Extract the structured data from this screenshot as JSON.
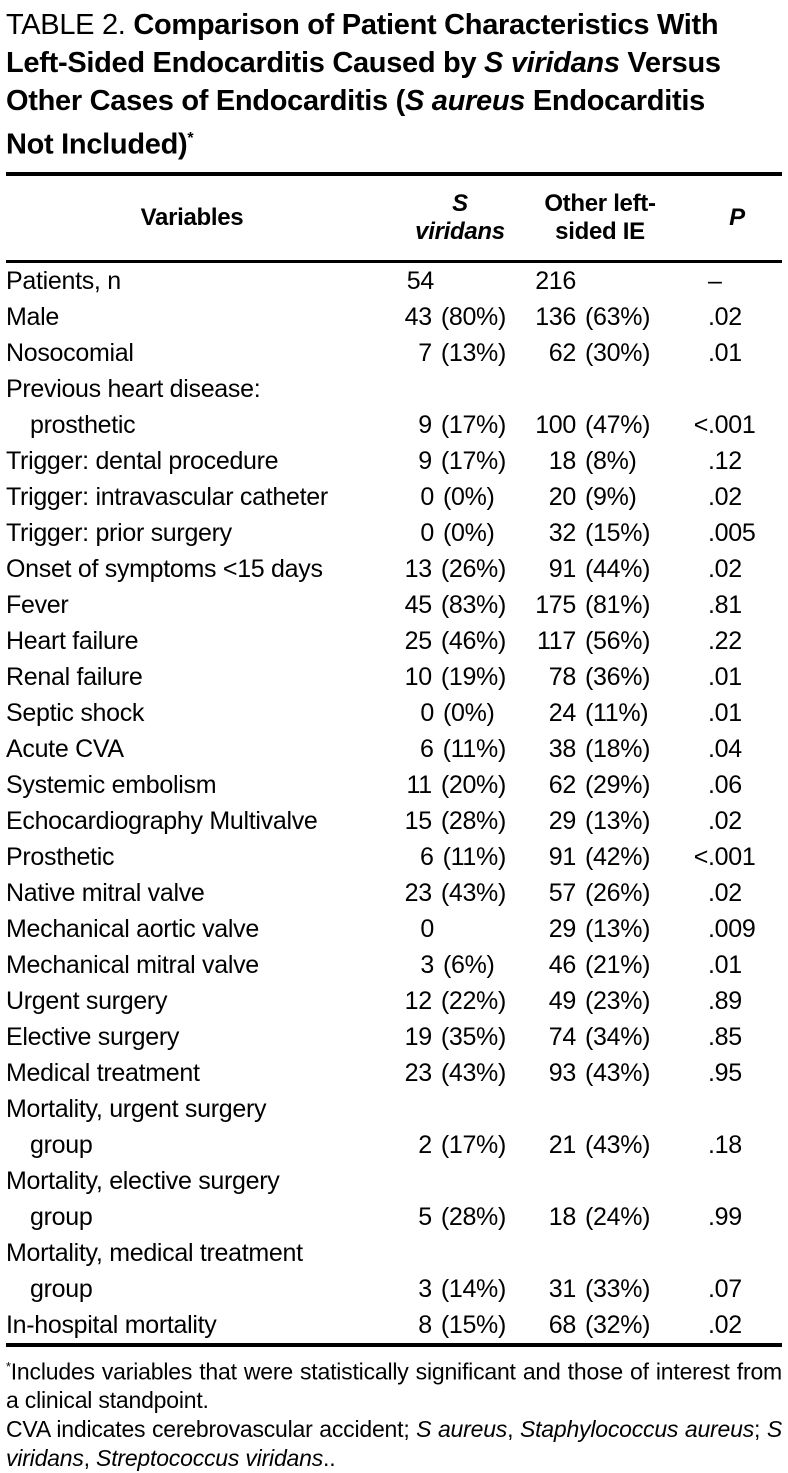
{
  "colors": {
    "text": "#000000",
    "background": "#ffffff"
  },
  "title": {
    "segments": [
      {
        "text": "TABLE 2. ",
        "style": "plain"
      },
      {
        "text": "Comparison of Patient Characteristics With",
        "style": "bold"
      },
      {
        "style": "break"
      },
      {
        "text": "Left-Sided Endocarditis Caused by ",
        "style": "bold"
      },
      {
        "text": "S viridans",
        "style": "bold-italic"
      },
      {
        "text": " Versus",
        "style": "bold"
      },
      {
        "style": "break"
      },
      {
        "text": "Other Cases of Endocarditis (",
        "style": "bold"
      },
      {
        "text": "S aureus",
        "style": "bold-italic"
      },
      {
        "text": " Endocarditis",
        "style": "bold"
      },
      {
        "style": "break"
      },
      {
        "text": "Not Included)",
        "style": "bold"
      },
      {
        "text": "*",
        "style": "bold-sup"
      }
    ]
  },
  "table": {
    "header": {
      "variables": "Variables",
      "sv": "S viridans",
      "other_line1": "Other left-",
      "other_line2": "sided IE",
      "p": "P"
    },
    "rows": [
      {
        "label": "Patients, n",
        "indent": false,
        "sv": [
          "54",
          ""
        ],
        "other": [
          "216",
          ""
        ],
        "p": [
          "",
          "–"
        ]
      },
      {
        "label": "Male",
        "indent": false,
        "sv": [
          "43",
          "(80%)"
        ],
        "other": [
          "136",
          "(63%)"
        ],
        "p": [
          "",
          ".02"
        ]
      },
      {
        "label": "Nosocomial",
        "indent": false,
        "sv": [
          "7",
          "(13%)"
        ],
        "other": [
          "62",
          "(30%)"
        ],
        "p": [
          "",
          ".01"
        ]
      },
      {
        "label": "Previous heart disease:",
        "indent": false,
        "sv": [
          "",
          ""
        ],
        "other": [
          "",
          ""
        ],
        "p": [
          "",
          ""
        ]
      },
      {
        "label": "prosthetic",
        "indent": true,
        "sv": [
          "9",
          "(17%)"
        ],
        "other": [
          "100",
          "(47%)"
        ],
        "p": [
          "<",
          ".001"
        ]
      },
      {
        "label": "Trigger: dental procedure",
        "indent": false,
        "sv": [
          "9",
          "(17%)"
        ],
        "other": [
          "18",
          "(8%)"
        ],
        "p": [
          "",
          ".12"
        ]
      },
      {
        "label": "Trigger: intravascular catheter",
        "indent": false,
        "sv": [
          "0",
          "(0%)"
        ],
        "other": [
          "20",
          "(9%)"
        ],
        "p": [
          "",
          ".02"
        ]
      },
      {
        "label": "Trigger: prior surgery",
        "indent": false,
        "sv": [
          "0",
          "(0%)"
        ],
        "other": [
          "32",
          "(15%)"
        ],
        "p": [
          "",
          ".005"
        ]
      },
      {
        "label": "Onset of symptoms <15 days",
        "indent": false,
        "sv": [
          "13",
          "(26%)"
        ],
        "other": [
          "91",
          "(44%)"
        ],
        "p": [
          "",
          ".02"
        ]
      },
      {
        "label": "Fever",
        "indent": false,
        "sv": [
          "45",
          "(83%)"
        ],
        "other": [
          "175",
          "(81%)"
        ],
        "p": [
          "",
          ".81"
        ]
      },
      {
        "label": "Heart failure",
        "indent": false,
        "sv": [
          "25",
          "(46%)"
        ],
        "other": [
          "117",
          "(56%)"
        ],
        "p": [
          "",
          ".22"
        ]
      },
      {
        "label": "Renal failure",
        "indent": false,
        "sv": [
          "10",
          "(19%)"
        ],
        "other": [
          "78",
          "(36%)"
        ],
        "p": [
          "",
          ".01"
        ]
      },
      {
        "label": "Septic shock",
        "indent": false,
        "sv": [
          "0",
          "(0%)"
        ],
        "other": [
          "24",
          "(11%)"
        ],
        "p": [
          "",
          ".01"
        ]
      },
      {
        "label": "Acute CVA",
        "indent": false,
        "sv": [
          "6",
          "(11%)"
        ],
        "other": [
          "38",
          "(18%)"
        ],
        "p": [
          "",
          ".04"
        ]
      },
      {
        "label": "Systemic embolism",
        "indent": false,
        "sv": [
          "11",
          "(20%)"
        ],
        "other": [
          "62",
          "(29%)"
        ],
        "p": [
          "",
          ".06"
        ]
      },
      {
        "label": "Echocardiography Multivalve",
        "indent": false,
        "sv": [
          "15",
          "(28%)"
        ],
        "other": [
          "29",
          "(13%)"
        ],
        "p": [
          "",
          ".02"
        ]
      },
      {
        "label": "Prosthetic",
        "indent": false,
        "sv": [
          "6",
          "(11%)"
        ],
        "other": [
          "91",
          "(42%)"
        ],
        "p": [
          "<",
          ".001"
        ]
      },
      {
        "label": "Native mitral valve",
        "indent": false,
        "sv": [
          "23",
          "(43%)"
        ],
        "other": [
          "57",
          "(26%)"
        ],
        "p": [
          "",
          ".02"
        ]
      },
      {
        "label": "Mechanical aortic valve",
        "indent": false,
        "sv": [
          "0",
          ""
        ],
        "other": [
          "29",
          "(13%)"
        ],
        "p": [
          "",
          ".009"
        ]
      },
      {
        "label": "Mechanical mitral valve",
        "indent": false,
        "sv": [
          "3",
          "(6%)"
        ],
        "other": [
          "46",
          "(21%)"
        ],
        "p": [
          "",
          ".01"
        ]
      },
      {
        "label": "Urgent surgery",
        "indent": false,
        "sv": [
          "12",
          "(22%)"
        ],
        "other": [
          "49",
          "(23%)"
        ],
        "p": [
          "",
          ".89"
        ]
      },
      {
        "label": "Elective surgery",
        "indent": false,
        "sv": [
          "19",
          "(35%)"
        ],
        "other": [
          "74",
          "(34%)"
        ],
        "p": [
          "",
          ".85"
        ]
      },
      {
        "label": "Medical treatment",
        "indent": false,
        "sv": [
          "23",
          "(43%)"
        ],
        "other": [
          "93",
          "(43%)"
        ],
        "p": [
          "",
          ".95"
        ]
      },
      {
        "label": "Mortality, urgent surgery",
        "indent": false,
        "sv": [
          "",
          ""
        ],
        "other": [
          "",
          ""
        ],
        "p": [
          "",
          ""
        ]
      },
      {
        "label": "group",
        "indent": true,
        "sv": [
          "2",
          "(17%)"
        ],
        "other": [
          "21",
          "(43%)"
        ],
        "p": [
          "",
          ".18"
        ]
      },
      {
        "label": "Mortality, elective surgery",
        "indent": false,
        "sv": [
          "",
          ""
        ],
        "other": [
          "",
          ""
        ],
        "p": [
          "",
          ""
        ]
      },
      {
        "label": "group",
        "indent": true,
        "sv": [
          "5",
          "(28%)"
        ],
        "other": [
          "18",
          "(24%)"
        ],
        "p": [
          "",
          ".99"
        ]
      },
      {
        "label": "Mortality, medical treatment",
        "indent": false,
        "sv": [
          "",
          ""
        ],
        "other": [
          "",
          ""
        ],
        "p": [
          "",
          ""
        ]
      },
      {
        "label": "group",
        "indent": true,
        "sv": [
          "3",
          "(14%)"
        ],
        "other": [
          "31",
          "(33%)"
        ],
        "p": [
          "",
          ".07"
        ]
      },
      {
        "label": "In-hospital mortality",
        "indent": false,
        "sv": [
          "8",
          "(15%)"
        ],
        "other": [
          "68",
          "(32%)"
        ],
        "p": [
          "",
          ".02"
        ]
      }
    ]
  },
  "footnotes": {
    "fn1_segments": [
      {
        "text": "*",
        "style": "sup"
      },
      {
        "text": "Includes variables that were statistically significant and those of interest from a clinical standpoint.",
        "style": "plain"
      }
    ],
    "fn2_segments": [
      {
        "text": "CVA indicates cerebrovascular accident; ",
        "style": "plain"
      },
      {
        "text": "S aureus",
        "style": "italic"
      },
      {
        "text": ", ",
        "style": "plain"
      },
      {
        "text": "Staphylococcus aureus",
        "style": "italic"
      },
      {
        "text": "; ",
        "style": "plain"
      },
      {
        "text": "S viridans",
        "style": "italic"
      },
      {
        "text": ", ",
        "style": "plain"
      },
      {
        "text": "Streptococcus viridans",
        "style": "italic"
      },
      {
        "text": "..",
        "style": "plain"
      }
    ]
  }
}
